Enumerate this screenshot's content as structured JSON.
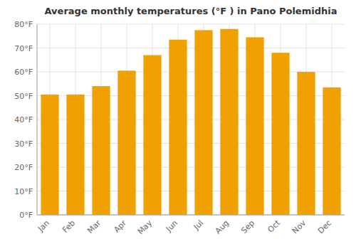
{
  "chart_data": {
    "type": "bar",
    "title": "Average monthly temperatures (°F ) in Pano Polemidhia",
    "categories": [
      "Jan",
      "Feb",
      "Mar",
      "Apr",
      "May",
      "Jun",
      "Jul",
      "Aug",
      "Sep",
      "Oct",
      "Nov",
      "Dec"
    ],
    "values": [
      50.5,
      50.5,
      54,
      60.5,
      67,
      73.5,
      77.5,
      78,
      74.5,
      68,
      60,
      53.5
    ],
    "color": "#F0A000",
    "ylim": [
      0,
      80
    ],
    "yticks": [
      {
        "value": 0,
        "label": "0°F"
      },
      {
        "value": 10,
        "label": "10°F"
      },
      {
        "value": 20,
        "label": "20°F"
      },
      {
        "value": 30,
        "label": "30°F"
      },
      {
        "value": 40,
        "label": "40°F"
      },
      {
        "value": 50,
        "label": "50°F"
      },
      {
        "value": 60,
        "label": "60°F"
      },
      {
        "value": 70,
        "label": "70°F"
      },
      {
        "value": 80,
        "label": "80°F"
      }
    ],
    "grid": true
  }
}
